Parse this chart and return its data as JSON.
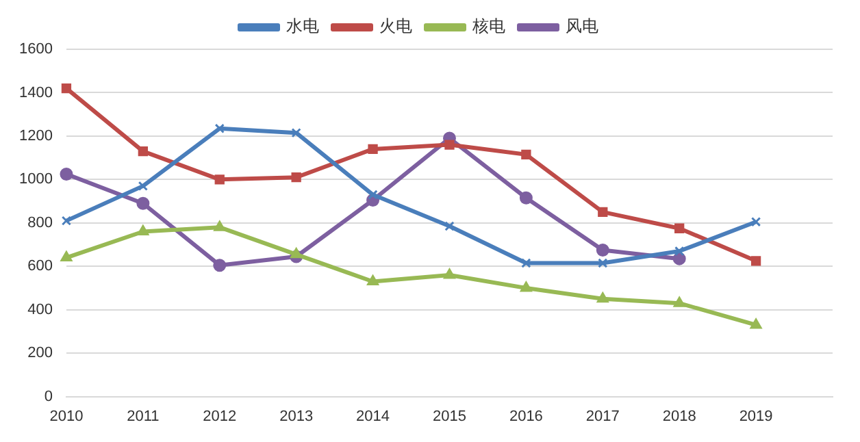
{
  "chart_data": {
    "type": "line",
    "categories": [
      "2010",
      "2011",
      "2012",
      "2013",
      "2014",
      "2015",
      "2016",
      "2017",
      "2018",
      "2019",
      null
    ],
    "series": [
      {
        "name": "水电",
        "color": "#4a7ebb",
        "marker": "cross",
        "values": [
          810,
          970,
          1235,
          1215,
          930,
          785,
          615,
          615,
          670,
          805,
          null
        ]
      },
      {
        "name": "火电",
        "color": "#be4b48",
        "marker": "square",
        "values": [
          1420,
          1130,
          1000,
          1010,
          1140,
          1160,
          1115,
          850,
          775,
          625,
          null
        ]
      },
      {
        "name": "核电",
        "color": "#98b954",
        "marker": "triangle",
        "values": [
          640,
          760,
          780,
          655,
          530,
          560,
          500,
          450,
          430,
          330,
          null
        ]
      },
      {
        "name": "风电",
        "color": "#7d5fa0",
        "marker": "circle",
        "values": [
          1025,
          890,
          605,
          645,
          905,
          1190,
          915,
          675,
          635,
          null,
          null
        ]
      }
    ],
    "ylim": [
      0,
      1600
    ],
    "yticks": [
      0,
      200,
      400,
      600,
      800,
      1000,
      1200,
      1400,
      1600
    ],
    "grid": "y",
    "legend": "top right"
  }
}
